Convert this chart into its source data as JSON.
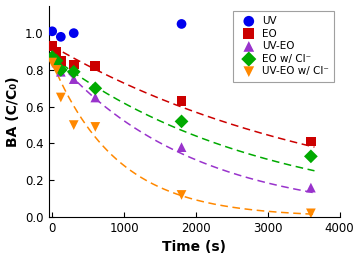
{
  "title": "",
  "xlabel": "Time (s)",
  "ylabel": "BA (C/C₀)",
  "xlim": [
    -50,
    4000
  ],
  "ylim": [
    0,
    1.15
  ],
  "yticks": [
    0.0,
    0.2,
    0.4,
    0.6,
    0.8,
    1.0
  ],
  "xticks": [
    0,
    1000,
    2000,
    3000,
    4000
  ],
  "series": [
    {
      "label": "UV",
      "color": "#0000EE",
      "marker": "o",
      "x": [
        0,
        120,
        300,
        1800
      ],
      "y": [
        1.01,
        0.98,
        1.0,
        1.05
      ],
      "has_fit": false
    },
    {
      "label": "EO",
      "color": "#CC0000",
      "marker": "s",
      "x": [
        0,
        60,
        120,
        300,
        600,
        1800,
        3600
      ],
      "y": [
        0.93,
        0.9,
        0.85,
        0.83,
        0.82,
        0.63,
        0.41
      ],
      "has_fit": true,
      "fit_color": "#CC0000",
      "fit_k": 0.000245
    },
    {
      "label": "UV-EO",
      "color": "#9933CC",
      "marker": "^",
      "x": [
        0,
        60,
        120,
        300,
        600,
        1800,
        3600
      ],
      "y": [
        0.88,
        0.84,
        0.79,
        0.75,
        0.65,
        0.38,
        0.16
      ],
      "has_fit": true,
      "fit_color": "#9933CC",
      "fit_k": 0.00052
    },
    {
      "label": "EO w/ Cl⁻",
      "color": "#00AA00",
      "marker": "D",
      "x": [
        0,
        60,
        120,
        300,
        600,
        1800,
        3600
      ],
      "y": [
        0.87,
        0.85,
        0.8,
        0.79,
        0.7,
        0.52,
        0.33
      ],
      "has_fit": true,
      "fit_color": "#00AA00",
      "fit_k": 0.00034
    },
    {
      "label": "UV-EO w/ Cl⁻",
      "color": "#FF8800",
      "marker": "v",
      "x": [
        0,
        60,
        120,
        300,
        600,
        1800,
        3600
      ],
      "y": [
        0.84,
        0.8,
        0.65,
        0.5,
        0.49,
        0.12,
        0.02
      ],
      "has_fit": true,
      "fit_color": "#FF8800",
      "fit_k": 0.0011
    }
  ],
  "background_color": "#ffffff",
  "legend_fontsize": 7.5,
  "axis_fontsize": 10,
  "marker_size": 7,
  "fig_width": 3.6,
  "fig_height": 2.6
}
